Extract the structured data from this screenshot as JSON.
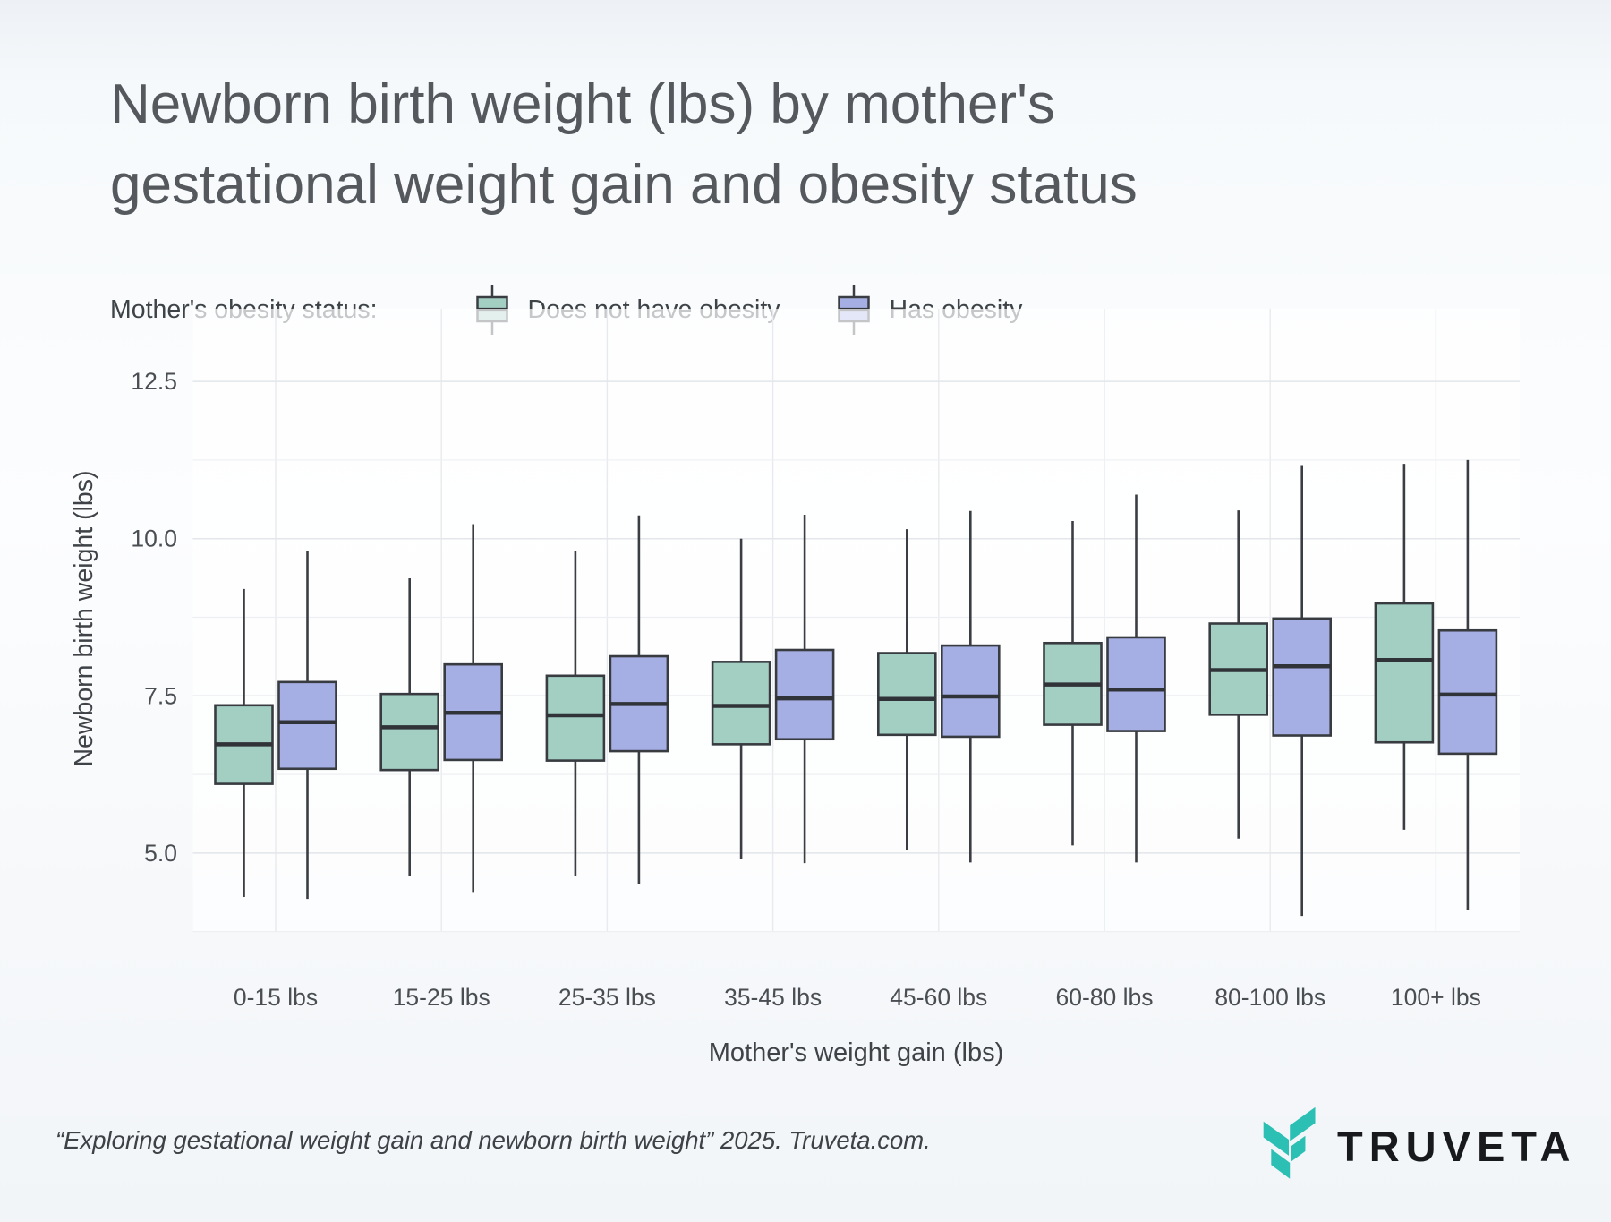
{
  "page": {
    "title_line1": "Newborn birth weight (lbs) by mother's",
    "title_line2": "gestational weight gain and obesity status"
  },
  "legend": {
    "label": "Mother's obesity status:",
    "series": [
      {
        "name": "Does not have obesity",
        "color": "#a3cec2"
      },
      {
        "name": "Has obesity",
        "color": "#a6afe4"
      }
    ]
  },
  "chart_data": {
    "type": "boxplot",
    "title": "Newborn birth weight (lbs) by mother's gestational weight gain and obesity status",
    "xlabel": "Mother's weight gain (lbs)",
    "ylabel": "Newborn birth weight (lbs)",
    "categories": [
      "0-15 lbs",
      "15-25 lbs",
      "25-35 lbs",
      "35-45 lbs",
      "45-60 lbs",
      "60-80 lbs",
      "80-100 lbs",
      "100+ lbs"
    ],
    "y_ticks": [
      5.0,
      7.5,
      10.0,
      12.5
    ],
    "y_tick_labels": [
      "5.0",
      "7.5",
      "10.0",
      "12.5"
    ],
    "y_minor_gridlines": [
      3.75,
      6.25,
      8.75,
      11.25
    ],
    "ylim": [
      3.75,
      13.4
    ],
    "grid": "major+minor, light gray on white panel",
    "legend_position": "top-left above plot",
    "series": [
      {
        "name": "Does not have obesity",
        "color": "#a3cec2",
        "boxes": [
          {
            "whisker_low": 4.3,
            "q1": 6.1,
            "median": 6.73,
            "q3": 7.35,
            "whisker_high": 9.2
          },
          {
            "whisker_low": 4.63,
            "q1": 6.32,
            "median": 7.0,
            "q3": 7.53,
            "whisker_high": 9.37
          },
          {
            "whisker_low": 4.64,
            "q1": 6.47,
            "median": 7.19,
            "q3": 7.82,
            "whisker_high": 9.81
          },
          {
            "whisker_low": 4.9,
            "q1": 6.73,
            "median": 7.34,
            "q3": 8.04,
            "whisker_high": 10.0
          },
          {
            "whisker_low": 5.05,
            "q1": 6.88,
            "median": 7.45,
            "q3": 8.18,
            "whisker_high": 10.15
          },
          {
            "whisker_low": 5.12,
            "q1": 7.04,
            "median": 7.68,
            "q3": 8.34,
            "whisker_high": 10.28
          },
          {
            "whisker_low": 5.23,
            "q1": 7.2,
            "median": 7.91,
            "q3": 8.65,
            "whisker_high": 10.45
          },
          {
            "whisker_low": 5.37,
            "q1": 6.76,
            "median": 8.07,
            "q3": 8.97,
            "whisker_high": 11.19
          }
        ]
      },
      {
        "name": "Has obesity",
        "color": "#a6afe4",
        "boxes": [
          {
            "whisker_low": 4.27,
            "q1": 6.34,
            "median": 7.08,
            "q3": 7.72,
            "whisker_high": 9.8
          },
          {
            "whisker_low": 4.38,
            "q1": 6.48,
            "median": 7.23,
            "q3": 8.0,
            "whisker_high": 10.23
          },
          {
            "whisker_low": 4.51,
            "q1": 6.62,
            "median": 7.37,
            "q3": 8.13,
            "whisker_high": 10.37
          },
          {
            "whisker_low": 4.84,
            "q1": 6.81,
            "median": 7.46,
            "q3": 8.23,
            "whisker_high": 10.38
          },
          {
            "whisker_low": 4.85,
            "q1": 6.85,
            "median": 7.49,
            "q3": 8.3,
            "whisker_high": 10.44
          },
          {
            "whisker_low": 4.85,
            "q1": 6.94,
            "median": 7.6,
            "q3": 8.43,
            "whisker_high": 10.7
          },
          {
            "whisker_low": 4.0,
            "q1": 6.87,
            "median": 7.97,
            "q3": 8.73,
            "whisker_high": 11.17
          },
          {
            "whisker_low": 4.1,
            "q1": 6.58,
            "median": 7.52,
            "q3": 8.54,
            "whisker_high": 11.25
          }
        ]
      }
    ]
  },
  "footer": {
    "citation": "“Exploring gestational weight gain and newborn birth weight” 2025. Truveta.com."
  },
  "logo": {
    "wordmark": "TRUVETA",
    "mark_color": "#2cc0b4"
  },
  "colors": {
    "box_outline": "#383c41",
    "gridline_major": "#e3e6ea",
    "gridline_minor": "#edeff2",
    "tick_text": "#4a4e52",
    "title_text": "#55595d"
  }
}
